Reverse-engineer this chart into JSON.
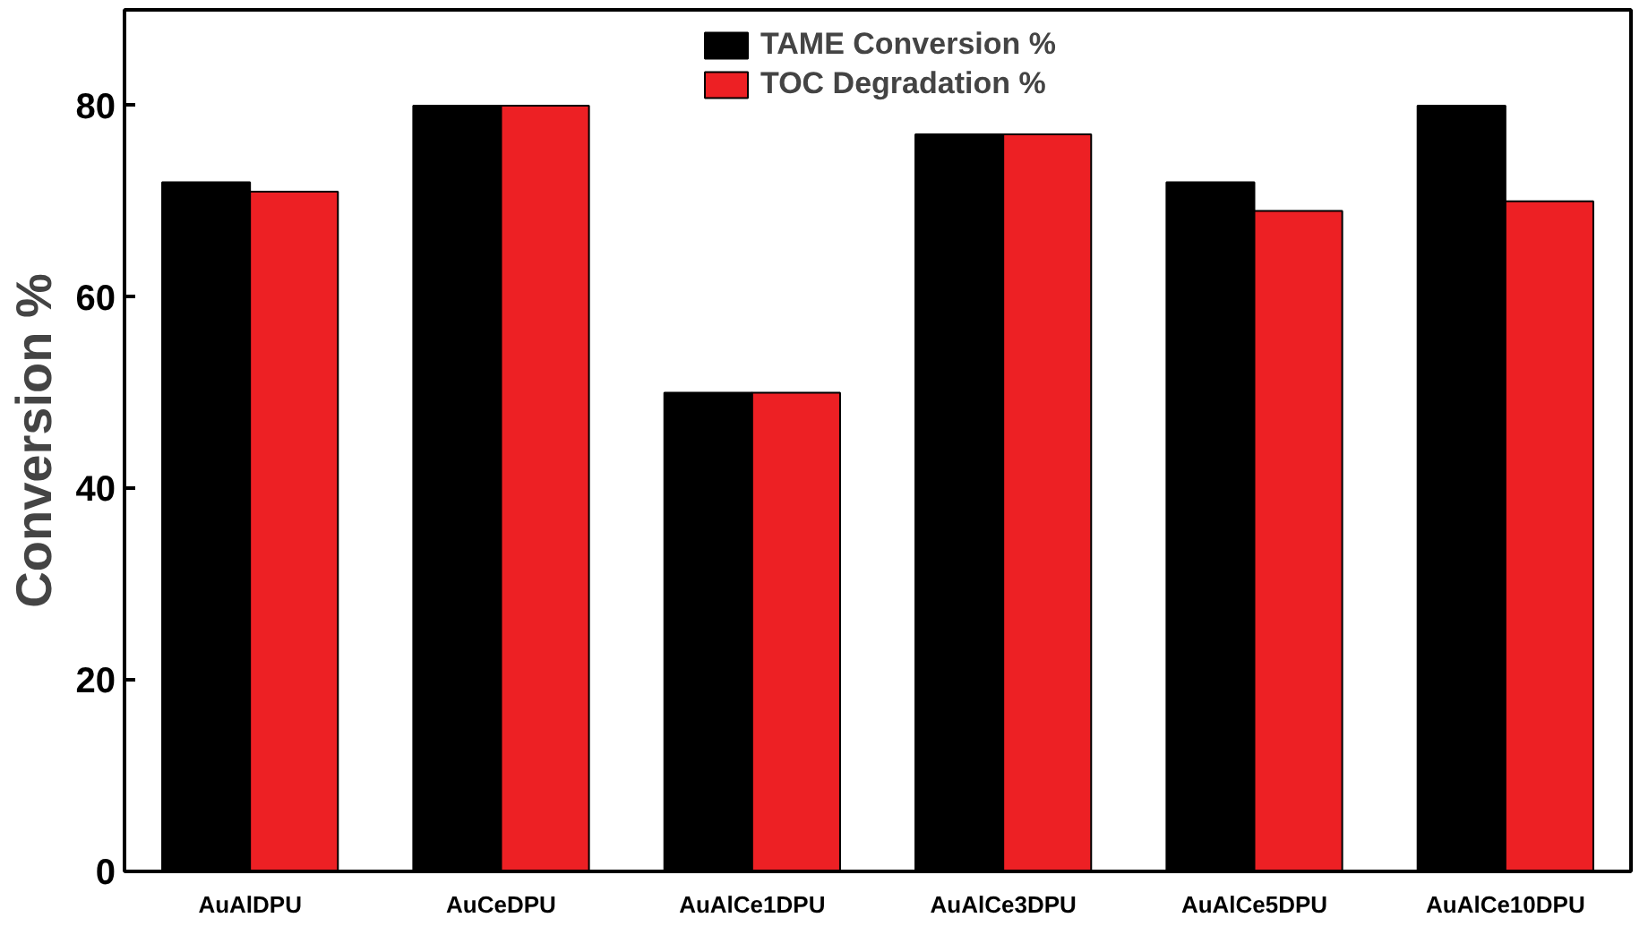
{
  "chart_data": {
    "type": "bar",
    "ylabel": "Conversion %",
    "categories": [
      "AuAlDPU",
      "AuCeDPU",
      "AuAlCe1DPU",
      "AuAlCe3DPU",
      "AuAlCe5DPU",
      "AuAlCe10DPU"
    ],
    "series": [
      {
        "name": "TAME Conversion %",
        "color": "#000000",
        "values": [
          72,
          80,
          50,
          77,
          72,
          80
        ]
      },
      {
        "name": "TOC Degradation %",
        "color": "#ed2024",
        "values": [
          71,
          80,
          50,
          77,
          69,
          70
        ]
      }
    ],
    "ylim": [
      0,
      90
    ],
    "yticks": [
      0,
      20,
      40,
      60,
      80
    ],
    "grid": false,
    "legend": "top"
  }
}
